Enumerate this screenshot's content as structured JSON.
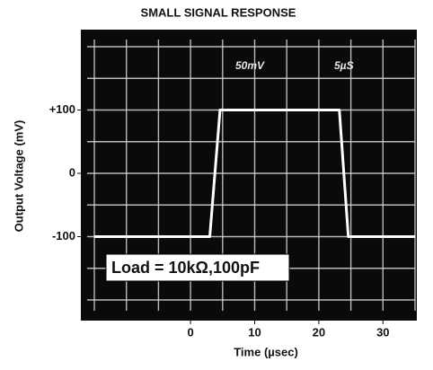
{
  "chart_data": {
    "type": "line",
    "title": "SMALL SIGNAL RESPONSE",
    "x_label": "Time (µsec)",
    "y_label": "Output Voltage (mV)",
    "annotations": [
      "50mV",
      "5µS",
      "Load = 10kΩ,100pF"
    ],
    "x": [
      -15,
      3,
      4.6,
      23.2,
      24.6,
      35
    ],
    "series": [
      {
        "color": "#ffffff",
        "values": [
          -100,
          -100,
          100,
          100,
          -100,
          -100
        ]
      }
    ],
    "xlim": [
      -15,
      35
    ],
    "ylim": [
      -200,
      200
    ],
    "xticks": [
      0,
      10,
      20,
      30
    ],
    "yticks": [
      {
        "value": 100,
        "label": "+100"
      },
      0,
      -100
    ]
  }
}
